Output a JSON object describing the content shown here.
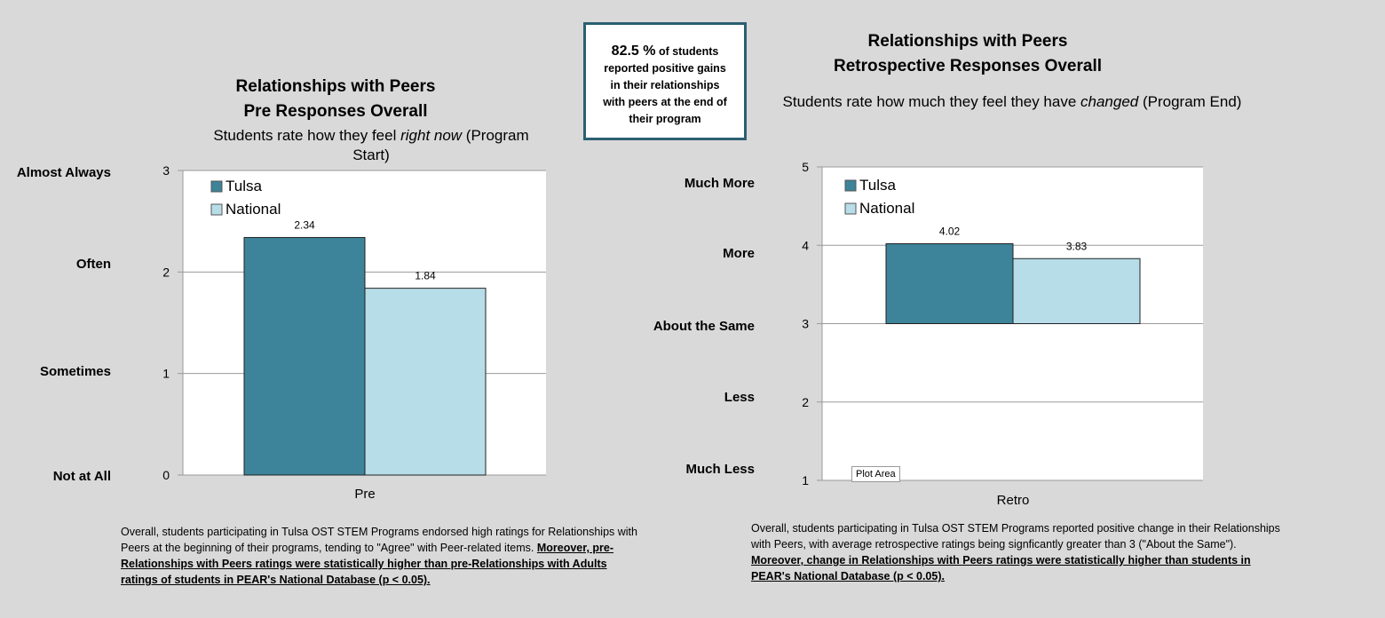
{
  "callout": {
    "pct": "82.5 %",
    "rest1": " of students",
    "rest2": "reported positive gains in their relationships with peers at the end of their program"
  },
  "left": {
    "title1": "Relationships with Peers",
    "title2": "Pre Responses Overall",
    "subtitle_pre": "Students rate how they feel ",
    "subtitle_em": "right now",
    "subtitle_post": " (Program Start)",
    "scale_labels": [
      "Almost Always",
      "Often",
      "Sometimes",
      "Not at All"
    ],
    "note_plain": "Overall, students participating in Tulsa OST STEM Programs endorsed high ratings for Relationships with Peers at the beginning of their programs, tending to \"Agree\" with Peer-related items. ",
    "note_bold": "Moreover, pre-Relationships with Peers ratings were statistically higher than pre-Relationships with Adults ratings of students in PEAR's National Database (p < 0.05)."
  },
  "right": {
    "title1": "Relationships with Peers",
    "title2": "Retrospective Responses Overall",
    "subtitle_pre": "Students rate how much they feel  they have ",
    "subtitle_em": "changed",
    "subtitle_post": " (Program End)",
    "scale_labels": [
      "Much More",
      "More",
      "About the Same",
      "Less",
      "Much Less"
    ],
    "tooltip": "Plot Area",
    "note_plain": "Overall, students participating in Tulsa OST STEM Programs reported positive change in their Relationships with Peers, with average retrospective ratings being signficantly greater than 3 (\"About the Same\"). ",
    "note_bold": "Moreover, change in Relationships with Peers ratings were statistically higher than students in PEAR's National Database (p < 0.05)."
  },
  "colors": {
    "tulsa": "#3d8399",
    "national": "#b7dde8"
  },
  "chart_data": [
    {
      "type": "bar",
      "categories": [
        "Pre"
      ],
      "series": [
        {
          "name": "Tulsa",
          "values": [
            2.34
          ]
        },
        {
          "name": "National",
          "values": [
            1.84
          ]
        }
      ],
      "ylim": [
        0,
        3
      ],
      "yticks": [
        "0",
        "1",
        "2",
        "3"
      ],
      "data_labels": [
        "2.34",
        "1.84"
      ],
      "grid": true,
      "legend": "top-left"
    },
    {
      "type": "bar",
      "categories": [
        "Retro"
      ],
      "series": [
        {
          "name": "Tulsa",
          "values": [
            4.02
          ]
        },
        {
          "name": "National",
          "values": [
            3.83
          ]
        }
      ],
      "baseline": 3,
      "ylim": [
        1,
        5
      ],
      "yticks": [
        "1",
        "2",
        "3",
        "4",
        "5"
      ],
      "data_labels": [
        "4.02",
        "3.83"
      ],
      "grid": true,
      "legend": "top-left"
    }
  ]
}
